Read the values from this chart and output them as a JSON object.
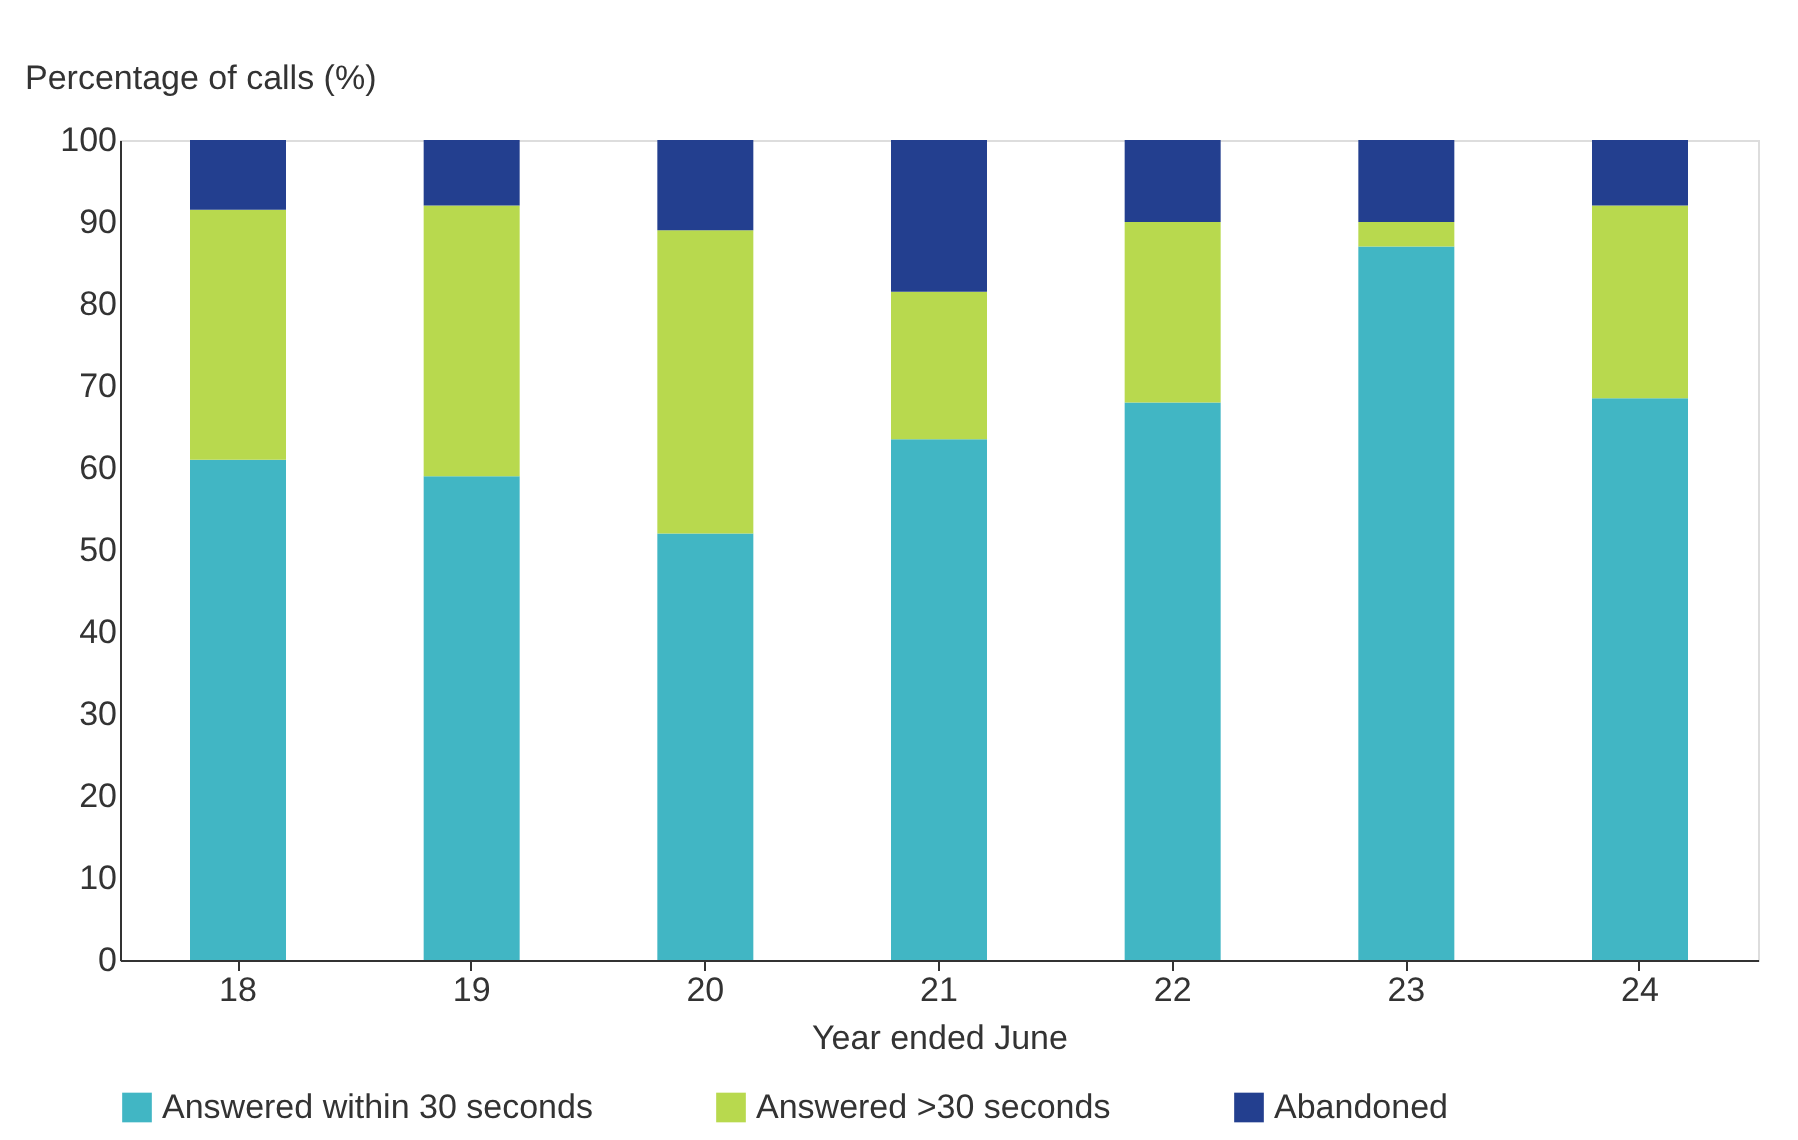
{
  "chart_data": {
    "type": "bar",
    "stacked": true,
    "ylabel": "Percentage of calls (%)",
    "xlabel": "Year ended June",
    "categories": [
      "18",
      "19",
      "20",
      "21",
      "22",
      "23",
      "24"
    ],
    "series": [
      {
        "name": "Answered within 30 seconds",
        "color": "#41b6c4",
        "values": [
          61,
          59,
          52,
          63.5,
          68,
          87,
          68.5
        ]
      },
      {
        "name": "Answered >30 seconds",
        "color": "#b8d94e",
        "values": [
          30.5,
          33,
          37,
          18,
          22,
          3,
          23.5
        ]
      },
      {
        "name": "Abandoned",
        "color": "#233f8f",
        "values": [
          8.5,
          8,
          11,
          18.5,
          10,
          10,
          8
        ]
      }
    ],
    "ylim": [
      0,
      100
    ],
    "yticks": [
      0,
      10,
      20,
      30,
      40,
      50,
      60,
      70,
      80,
      90,
      100
    ],
    "grid": false,
    "legend": "bottom"
  }
}
